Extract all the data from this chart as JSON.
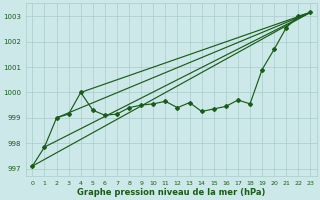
{
  "xlabel": "Graphe pression niveau de la mer (hPa)",
  "bg_color": "#cce8e8",
  "grid_color": "#aacccc",
  "line_color": "#1a5c1a",
  "xlim": [
    -0.5,
    23.5
  ],
  "ylim": [
    996.7,
    1003.5
  ],
  "yticks": [
    997,
    998,
    999,
    1000,
    1001,
    1002,
    1003
  ],
  "xticks": [
    0,
    1,
    2,
    3,
    4,
    5,
    6,
    7,
    8,
    9,
    10,
    11,
    12,
    13,
    14,
    15,
    16,
    17,
    18,
    19,
    20,
    21,
    22,
    23
  ],
  "series_main": {
    "x": [
      0,
      1,
      2,
      3,
      4,
      5,
      6,
      7,
      8,
      9,
      10,
      11,
      12,
      13,
      14,
      15,
      16,
      17,
      18,
      19,
      20,
      21,
      22,
      23
    ],
    "y": [
      997.1,
      997.85,
      999.0,
      999.15,
      1000.0,
      999.3,
      999.1,
      999.15,
      999.4,
      999.5,
      999.55,
      999.65,
      999.4,
      999.6,
      999.25,
      999.35,
      999.45,
      999.7,
      999.55,
      1000.9,
      1001.7,
      1002.55,
      1003.0,
      1003.15
    ]
  },
  "diag_line1": {
    "x": [
      0,
      23
    ],
    "y": [
      997.1,
      1003.15
    ]
  },
  "diag_line2": {
    "x": [
      1,
      23
    ],
    "y": [
      997.85,
      1003.15
    ]
  },
  "diag_line3": {
    "x": [
      2,
      23
    ],
    "y": [
      999.0,
      1003.15
    ]
  },
  "diag_line4": {
    "x": [
      4,
      23
    ],
    "y": [
      1000.0,
      1003.15
    ]
  }
}
